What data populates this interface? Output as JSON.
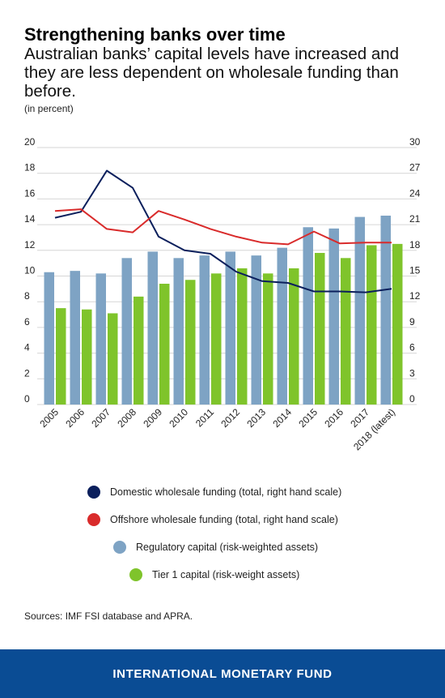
{
  "title": "Strengthening banks over time",
  "subtitle": "Australian banks’ capital levels have increased and they are less dependent on wholesale funding than before.",
  "unit_note": "(in percent)",
  "legend": [
    {
      "label": "Domestic wholesale funding (total, right hand scale)",
      "color": "#0b1f5c",
      "shape": "circle"
    },
    {
      "label": "Offshore wholesale funding (total, right hand scale)",
      "color": "#d92b2b",
      "shape": "circle"
    },
    {
      "label": "Regulatory capital (risk-weighted assets)",
      "color": "#7ea3c4",
      "shape": "circle"
    },
    {
      "label": "Tier 1 capital (risk-weight assets)",
      "color": "#7fc42b",
      "shape": "circle"
    }
  ],
  "sources": "Sources: IMF FSI database and APRA.",
  "footer": "INTERNATIONAL MONETARY FUND",
  "chart_data": {
    "type": "bar",
    "categories": [
      "2005",
      "2006",
      "2007",
      "2008",
      "2009",
      "2010",
      "2011",
      "2012",
      "2013",
      "2014",
      "2015",
      "2016",
      "2017",
      "2018 (latest)"
    ],
    "left_axis": {
      "ylim": [
        0,
        20
      ],
      "ticks": [
        "0",
        "2",
        "4",
        "6",
        "8",
        "10",
        "12",
        "14",
        "16",
        "18",
        "20"
      ]
    },
    "right_axis": {
      "ylim": [
        0,
        30
      ],
      "ticks": [
        "0",
        "3",
        "6",
        "9",
        "12",
        "15",
        "18",
        "21",
        "24",
        "27",
        "30"
      ]
    },
    "grid": true,
    "series": [
      {
        "name": "Regulatory capital (risk-weighted assets)",
        "type": "bar",
        "axis": "left",
        "color": "#7ea3c4",
        "values": [
          10.3,
          10.4,
          10.2,
          11.4,
          11.9,
          11.4,
          11.6,
          11.9,
          11.6,
          12.2,
          13.8,
          13.7,
          14.6,
          14.7
        ]
      },
      {
        "name": "Tier 1 capital (risk-weight assets)",
        "type": "bar",
        "axis": "left",
        "color": "#7fc42b",
        "values": [
          7.5,
          7.4,
          7.1,
          8.4,
          9.4,
          9.7,
          10.2,
          10.6,
          10.2,
          10.6,
          11.8,
          11.4,
          12.4,
          12.5
        ]
      },
      {
        "name": "Domestic wholesale funding (total, right hand scale)",
        "type": "line",
        "axis": "right",
        "color": "#0b1f5c",
        "values": [
          21.8,
          22.5,
          27.3,
          25.3,
          19.6,
          18.0,
          17.6,
          15.5,
          14.4,
          14.2,
          13.2,
          13.2,
          13.1,
          13.5
        ]
      },
      {
        "name": "Offshore wholesale funding (total, right hand scale)",
        "type": "line",
        "axis": "right",
        "color": "#d92b2b",
        "values": [
          22.6,
          22.8,
          20.5,
          20.1,
          22.6,
          21.6,
          20.5,
          19.6,
          18.9,
          18.7,
          20.2,
          18.8,
          18.9,
          18.9
        ]
      }
    ]
  }
}
